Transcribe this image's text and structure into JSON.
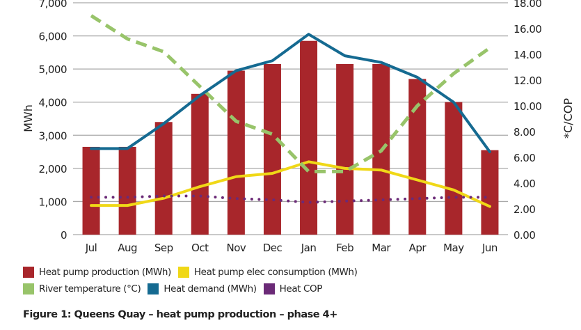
{
  "chart_data": {
    "type": "bar",
    "title": "Figure 1:  Queens Quay – heat pump production – phase 4+",
    "categories": [
      "Jul",
      "Aug",
      "Sep",
      "Oct",
      "Nov",
      "Dec",
      "Jan",
      "Feb",
      "Mar",
      "Apr",
      "May",
      "Jun"
    ],
    "ylabel": "MWh",
    "ylabel_right": "*C/COP",
    "ylim": [
      0,
      7000
    ],
    "ylim_right": [
      0,
      18
    ],
    "yticks": [
      "0",
      "1,000",
      "2,000",
      "3,000",
      "4,000",
      "5,000",
      "6,000",
      "7,000"
    ],
    "yticks_right": [
      "0.00",
      "2.00",
      "4.00",
      "6.00",
      "8.00",
      "10.00",
      "12.00",
      "14.00",
      "16.00",
      "18.00"
    ],
    "grid": true,
    "legend_position": "bottom",
    "series": [
      {
        "name": "Heat pump production (MWh)",
        "type": "bar",
        "axis": "left",
        "color": "#a8262b",
        "values": [
          2650,
          2650,
          3400,
          4250,
          4950,
          5150,
          5850,
          5150,
          5150,
          4700,
          4000,
          2550
        ]
      },
      {
        "name": "Heat pump elec consumption (MWh)",
        "type": "line",
        "axis": "left",
        "color": "#f0d817",
        "values": [
          880,
          880,
          1100,
          1450,
          1750,
          1850,
          2200,
          2000,
          1950,
          1650,
          1350,
          850
        ]
      },
      {
        "name": "River temperature (°C)",
        "type": "line-dashed",
        "axis": "right",
        "color": "#98c46a",
        "values": [
          17.0,
          15.2,
          14.2,
          11.5,
          8.8,
          7.8,
          4.9,
          4.9,
          6.5,
          10.0,
          12.5,
          14.5
        ]
      },
      {
        "name": "Heat demand (MWh)",
        "type": "line",
        "axis": "left",
        "color": "#156a91",
        "values": [
          2600,
          2600,
          3350,
          4200,
          4950,
          5250,
          6050,
          5400,
          5200,
          4750,
          4000,
          2500
        ]
      },
      {
        "name": "Heat COP",
        "type": "line-dotted",
        "axis": "right",
        "color": "#6b2a77",
        "values": [
          2.9,
          2.9,
          3.0,
          3.0,
          2.8,
          2.7,
          2.5,
          2.6,
          2.7,
          2.8,
          2.9,
          2.9
        ]
      }
    ]
  },
  "legend_rows": [
    [
      0,
      1
    ],
    [
      2,
      3,
      4
    ]
  ]
}
